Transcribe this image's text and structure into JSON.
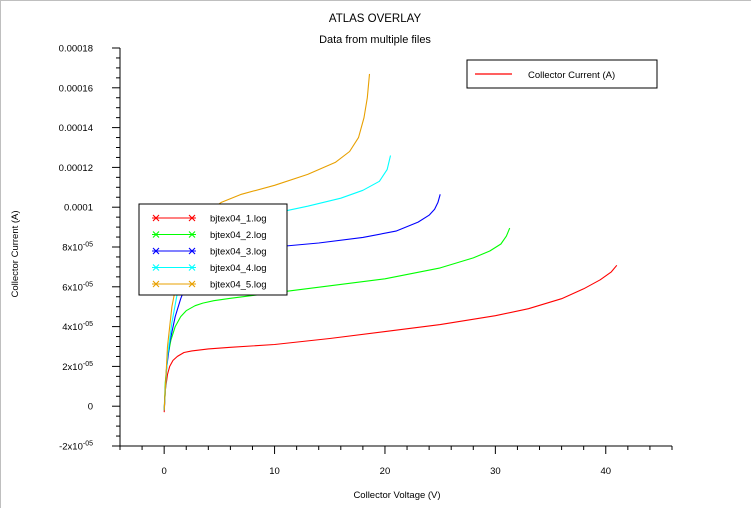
{
  "chart_data": {
    "type": "line",
    "title": "ATLAS OVERLAY",
    "subtitle": "Data from multiple files",
    "xlabel": "Collector Voltage (V)",
    "ylabel": "Collector Current (A)",
    "xlim": [
      -4,
      46
    ],
    "ylim": [
      -2e-05,
      0.00018
    ],
    "x_ticks": [
      0,
      10,
      20,
      30,
      40
    ],
    "x_tick_labels": [
      "0",
      "10",
      "20",
      "30",
      "40"
    ],
    "y_ticks": [
      0.00018,
      0.00016,
      0.00014,
      0.00012,
      0.0001,
      8e-05,
      6e-05,
      4e-05,
      2e-05,
      0,
      -2e-05
    ],
    "y_tick_labels": [
      {
        "base": "0.00018",
        "exp": ""
      },
      {
        "base": "0.00016",
        "exp": ""
      },
      {
        "base": "0.00014",
        "exp": ""
      },
      {
        "base": "0.00012",
        "exp": ""
      },
      {
        "base": "0.0001",
        "exp": ""
      },
      {
        "base": "8x10",
        "exp": "-05"
      },
      {
        "base": "6x10",
        "exp": "-05"
      },
      {
        "base": "4x10",
        "exp": "-05"
      },
      {
        "base": "2x10",
        "exp": "-05"
      },
      {
        "base": "0",
        "exp": ""
      },
      {
        "base": "-2x10",
        "exp": "-05"
      }
    ],
    "grid": false,
    "legend_top_right": {
      "label": "Collector Current (A)",
      "color": "#ff0000"
    },
    "legend_files_position": "left-center",
    "series": [
      {
        "name": "bjtex04_1.log",
        "color": "#ff0000",
        "x": [
          0,
          0.1,
          0.3,
          0.5,
          0.8,
          1.2,
          1.8,
          2.5,
          4,
          6,
          10,
          15,
          20,
          25,
          30,
          33,
          36,
          38,
          39.5,
          40.5,
          41
        ],
        "y": [
          -3e-06,
          8e-06,
          1.6e-05,
          2e-05,
          2.3e-05,
          2.5e-05,
          2.7e-05,
          2.78e-05,
          2.88e-05,
          2.96e-05,
          3.1e-05,
          3.4e-05,
          3.75e-05,
          4.1e-05,
          4.55e-05,
          4.9e-05,
          5.4e-05,
          5.9e-05,
          6.35e-05,
          6.75e-05,
          7.08e-05
        ]
      },
      {
        "name": "bjtex04_2.log",
        "color": "#00ff00",
        "x": [
          0,
          0.1,
          0.3,
          0.6,
          1,
          1.5,
          2,
          2.8,
          3.5,
          4.5,
          6,
          10,
          15,
          20,
          25,
          28,
          29.5,
          30.5,
          31,
          31.3
        ],
        "y": [
          -2e-06,
          1.2e-05,
          2.4e-05,
          3.3e-05,
          4e-05,
          4.5e-05,
          4.8e-05,
          5.05e-05,
          5.18e-05,
          5.3e-05,
          5.42e-05,
          5.7e-05,
          6.05e-05,
          6.4e-05,
          6.95e-05,
          7.45e-05,
          7.8e-05,
          8.15e-05,
          8.55e-05,
          8.95e-05
        ]
      },
      {
        "name": "bjtex04_3.log",
        "color": "#0000ff",
        "x": [
          0,
          0.2,
          0.5,
          1,
          1.5,
          2,
          2.6,
          3.2,
          4,
          5,
          7,
          10,
          14,
          18,
          21,
          23,
          24,
          24.5,
          24.8,
          25
        ],
        "y": [
          -2e-06,
          1.8e-05,
          3.2e-05,
          4.5e-05,
          5.4e-05,
          6.1e-05,
          6.65e-05,
          7.05e-05,
          7.38e-05,
          7.6e-05,
          7.83e-05,
          8e-05,
          8.2e-05,
          8.48e-05,
          8.8e-05,
          9.25e-05,
          9.6e-05,
          9.9e-05,
          0.0001025,
          0.0001065
        ]
      },
      {
        "name": "bjtex04_4.log",
        "color": "#00ffff",
        "x": [
          0,
          0.3,
          0.7,
          1.2,
          2,
          2.8,
          4,
          5,
          7,
          10,
          13,
          16,
          18,
          19.5,
          20.2,
          20.5
        ],
        "y": [
          -2e-06,
          2.5e-05,
          4.2e-05,
          5.7e-05,
          7.1e-05,
          8e-05,
          8.75e-05,
          9.05e-05,
          9.37e-05,
          9.7e-05,
          0.0001005,
          0.0001045,
          0.0001085,
          0.000113,
          0.000119,
          0.000126
        ]
      },
      {
        "name": "bjtex04_5.log",
        "color": "#e8a000",
        "x": [
          0,
          0.3,
          0.7,
          1.3,
          2,
          3,
          4,
          5.2,
          7,
          10,
          13,
          15.5,
          16.8,
          17.6,
          18.1,
          18.4,
          18.6
        ],
        "y": [
          -2e-06,
          3e-05,
          5e-05,
          6.7e-05,
          8e-05,
          9.1e-05,
          9.8e-05,
          0.0001025,
          0.0001065,
          0.000111,
          0.0001165,
          0.0001225,
          0.000128,
          0.000135,
          0.000145,
          0.000155,
          0.000167
        ]
      }
    ]
  }
}
